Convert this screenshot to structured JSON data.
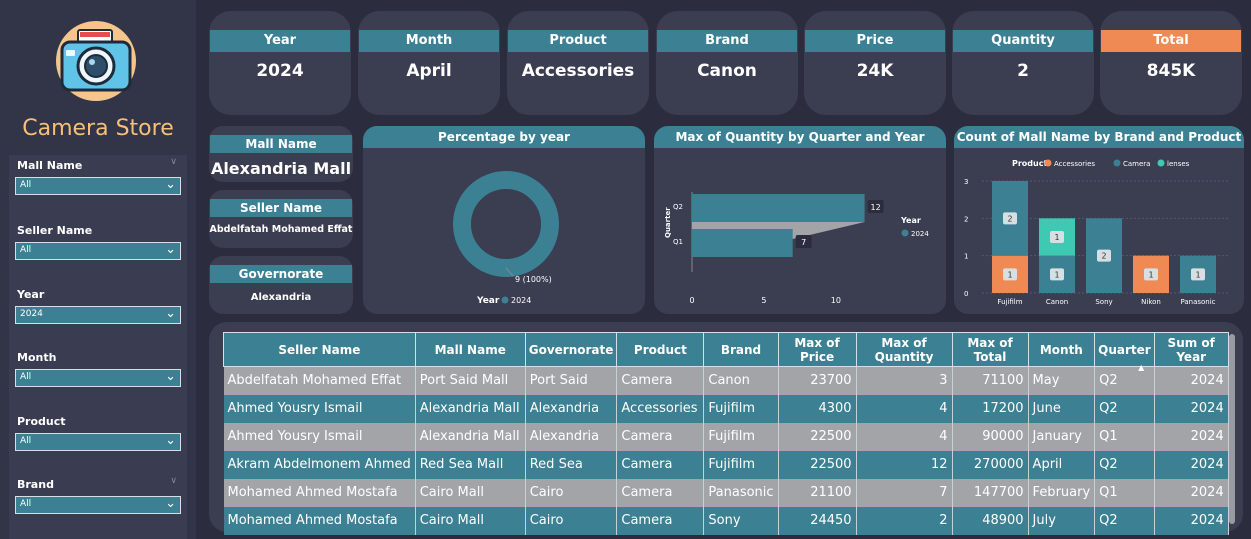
{
  "sidebar": {
    "title": "Camera Store",
    "slicers": [
      {
        "label": "Mall Name",
        "value": "All"
      },
      {
        "label": "Seller Name",
        "value": "All"
      },
      {
        "label": "Year",
        "value": "2024"
      },
      {
        "label": "Month",
        "value": "All"
      },
      {
        "label": "Product",
        "value": "All"
      },
      {
        "label": "Brand",
        "value": "All"
      }
    ]
  },
  "kpis": [
    {
      "label": "Year",
      "value": "2024"
    },
    {
      "label": "Month",
      "value": "April"
    },
    {
      "label": "Product",
      "value": "Accessories"
    },
    {
      "label": "Brand",
      "value": "Canon"
    },
    {
      "label": "Price",
      "value": "24K"
    },
    {
      "label": "Quantity",
      "value": "2"
    },
    {
      "label": "Total",
      "value": "845K"
    }
  ],
  "info": {
    "mall": {
      "label": "Mall Name",
      "value": "Alexandria Mall"
    },
    "seller": {
      "label": "Seller Name",
      "value": "Abdelfatah Mohamed Effat"
    },
    "governorate": {
      "label": "Governorate",
      "value": "Alexandria"
    }
  },
  "colors": {
    "accent": "#3b8193",
    "orange": "#f08a55",
    "teal": "#3ec9b2",
    "bg": "#2b2d3e",
    "card": "#3b3d51"
  },
  "chart_data": [
    {
      "type": "pie",
      "title": "Percentage by year",
      "legend_title": "Year",
      "categories": [
        "2024"
      ],
      "values": [
        9
      ],
      "data_label": "9 (100%)"
    },
    {
      "type": "bar",
      "orientation": "horizontal",
      "title": "Max of Quantity by Quarter and Year",
      "ylabel": "Quarter",
      "legend_title": "Year",
      "categories": [
        "Q2",
        "Q1"
      ],
      "series": [
        {
          "name": "2024",
          "values": [
            12,
            7
          ]
        }
      ],
      "xticks": [
        "0",
        "5",
        "10"
      ],
      "xlim": [
        0,
        13
      ]
    },
    {
      "type": "bar",
      "stacked": true,
      "title": "Count of Mall Name by Brand and Product",
      "legend_title": "Product",
      "categories": [
        "Fujifilm",
        "Canon",
        "Sony",
        "Nikon",
        "Panasonic"
      ],
      "series": [
        {
          "name": "Accessories",
          "color": "#f08a55",
          "values": [
            1,
            0,
            0,
            1,
            0
          ]
        },
        {
          "name": "Camera",
          "color": "#3b8193",
          "values": [
            2,
            1,
            2,
            0,
            1
          ]
        },
        {
          "name": "lenses",
          "color": "#3ec9b2",
          "values": [
            0,
            1,
            0,
            0,
            0
          ]
        }
      ],
      "yticks": [
        "0",
        "1",
        "2",
        "3"
      ],
      "ylim": [
        0,
        3
      ]
    }
  ],
  "table": {
    "columns": [
      "Seller Name",
      "Mall Name",
      "Governorate",
      "Product",
      "Brand",
      "Max of Price",
      "Max of Quantity",
      "Max of Total",
      "Month",
      "Quarter",
      "Sum of Year"
    ],
    "rows": [
      [
        "Abdelfatah Mohamed Effat",
        "Port Said Mall",
        "Port Said",
        "Camera",
        "Canon",
        "23700",
        "3",
        "71100",
        "May",
        "Q2",
        "2024"
      ],
      [
        "Ahmed Yousry Ismail",
        "Alexandria Mall",
        "Alexandria",
        "Accessories",
        "Fujifilm",
        "4300",
        "4",
        "17200",
        "June",
        "Q2",
        "2024"
      ],
      [
        "Ahmed Yousry Ismail",
        "Alexandria Mall",
        "Alexandria",
        "Camera",
        "Fujifilm",
        "22500",
        "4",
        "90000",
        "January",
        "Q1",
        "2024"
      ],
      [
        "Akram Abdelmonem Ahmed",
        "Red Sea Mall",
        "Red Sea",
        "Camera",
        "Fujifilm",
        "22500",
        "12",
        "270000",
        "April",
        "Q2",
        "2024"
      ],
      [
        "Mohamed Ahmed Mostafa",
        "Cairo Mall",
        "Cairo",
        "Camera",
        "Panasonic",
        "21100",
        "7",
        "147700",
        "February",
        "Q1",
        "2024"
      ],
      [
        "Mohamed Ahmed Mostafa",
        "Cairo Mall",
        "Cairo",
        "Camera",
        "Sony",
        "24450",
        "2",
        "48900",
        "July",
        "Q2",
        "2024"
      ]
    ]
  }
}
